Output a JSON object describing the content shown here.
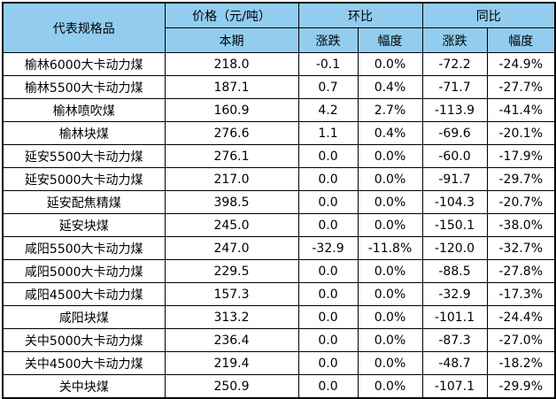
{
  "table": {
    "header": {
      "product": "代表规格品",
      "price_group": "价格（元/吨）",
      "price_sub": "本期",
      "mom_group": "环比",
      "yoy_group": "同比",
      "mom_change": "涨跌",
      "mom_rate": "幅度",
      "yoy_change": "涨跌",
      "yoy_rate": "幅度"
    },
    "rows": [
      {
        "name": "榆林6000大卡动力煤",
        "price": "218.0",
        "mom_change": "-0.1",
        "mom_rate": "0.0%",
        "yoy_change": "-72.2",
        "yoy_rate": "-24.9%"
      },
      {
        "name": "榆林5500大卡动力煤",
        "price": "187.1",
        "mom_change": "0.7",
        "mom_rate": "0.4%",
        "yoy_change": "-71.7",
        "yoy_rate": "-27.7%"
      },
      {
        "name": "榆林喷吹煤",
        "price": "160.9",
        "mom_change": "4.2",
        "mom_rate": "2.7%",
        "yoy_change": "-113.9",
        "yoy_rate": "-41.4%"
      },
      {
        "name": "榆林块煤",
        "price": "276.6",
        "mom_change": "1.1",
        "mom_rate": "0.4%",
        "yoy_change": "-69.6",
        "yoy_rate": "-20.1%"
      },
      {
        "name": "延安5500大卡动力煤",
        "price": "276.1",
        "mom_change": "0.0",
        "mom_rate": "0.0%",
        "yoy_change": "-60.0",
        "yoy_rate": "-17.9%"
      },
      {
        "name": "延安5000大卡动力煤",
        "price": "217.0",
        "mom_change": "0.0",
        "mom_rate": "0.0%",
        "yoy_change": "-91.7",
        "yoy_rate": "-29.7%"
      },
      {
        "name": "延安配焦精煤",
        "price": "398.5",
        "mom_change": "0.0",
        "mom_rate": "0.0%",
        "yoy_change": "-104.3",
        "yoy_rate": "-20.7%"
      },
      {
        "name": "延安块煤",
        "price": "245.0",
        "mom_change": "0.0",
        "mom_rate": "0.0%",
        "yoy_change": "-150.1",
        "yoy_rate": "-38.0%"
      },
      {
        "name": "咸阳5500大卡动力煤",
        "price": "247.0",
        "mom_change": "-32.9",
        "mom_rate": "-11.8%",
        "yoy_change": "-120.0",
        "yoy_rate": "-32.7%"
      },
      {
        "name": "咸阳5000大卡动力煤",
        "price": "229.5",
        "mom_change": "0.0",
        "mom_rate": "0.0%",
        "yoy_change": "-88.5",
        "yoy_rate": "-27.8%"
      },
      {
        "name": "咸阳4500大卡动力煤",
        "price": "157.3",
        "mom_change": "0.0",
        "mom_rate": "0.0%",
        "yoy_change": "-32.9",
        "yoy_rate": "-17.3%"
      },
      {
        "name": "咸阳块煤",
        "price": "313.2",
        "mom_change": "0.0",
        "mom_rate": "0.0%",
        "yoy_change": "-101.1",
        "yoy_rate": "-24.4%"
      },
      {
        "name": "关中5000大卡动力煤",
        "price": "236.4",
        "mom_change": "0.0",
        "mom_rate": "0.0%",
        "yoy_change": "-87.3",
        "yoy_rate": "-27.0%"
      },
      {
        "name": "关中4500大卡动力煤",
        "price": "219.4",
        "mom_change": "0.0",
        "mom_rate": "0.0%",
        "yoy_change": "-48.7",
        "yoy_rate": "-18.2%"
      },
      {
        "name": "关中块煤",
        "price": "250.9",
        "mom_change": "0.0",
        "mom_rate": "0.0%",
        "yoy_change": "-107.1",
        "yoy_rate": "-29.9%"
      }
    ]
  },
  "colors": {
    "header_bg": "#92CDF0",
    "border": "#000000",
    "text": "#000000",
    "row_bg": "#FFFFFF"
  }
}
